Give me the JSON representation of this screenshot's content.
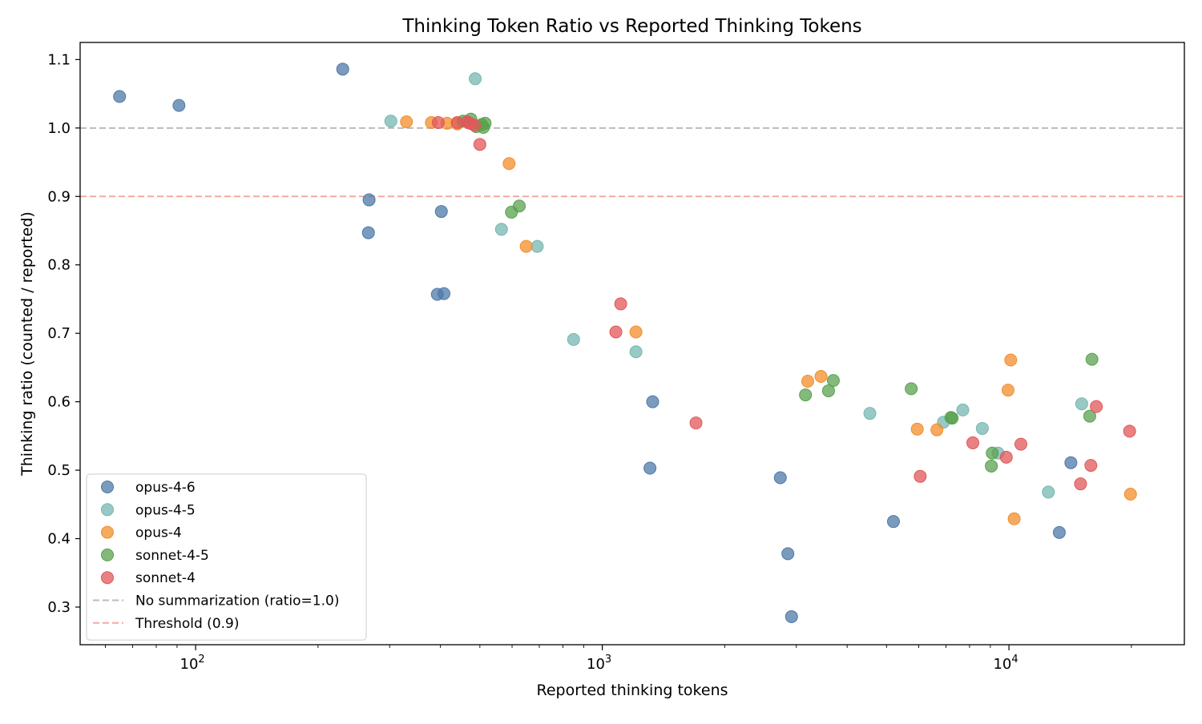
{
  "chart_data": {
    "type": "scatter",
    "title": "Thinking Token Ratio vs Reported Thinking Tokens",
    "xlabel": "Reported thinking tokens",
    "ylabel": "Thinking ratio (counted / reported)",
    "xscale": "log",
    "xlim": [
      52,
      27000
    ],
    "ylim": [
      0.245,
      1.125
    ],
    "x_tick_labels": [
      {
        "value": 100,
        "base": "10",
        "exp": "2"
      },
      {
        "value": 1000,
        "base": "10",
        "exp": "3"
      },
      {
        "value": 10000,
        "base": "10",
        "exp": "4"
      }
    ],
    "y_ticks": [
      0.3,
      0.4,
      0.5,
      0.6,
      0.7,
      0.8,
      0.9,
      1.0,
      1.1
    ],
    "y_tick_labels": [
      "0.3",
      "0.4",
      "0.5",
      "0.6",
      "0.7",
      "0.8",
      "0.9",
      "1.0",
      "1.1"
    ],
    "legend_position": "lower-left",
    "reference_lines": [
      {
        "name": "No summarization (ratio=1.0)",
        "y": 1.0,
        "color": "#bbbbbb",
        "style": "dashed"
      },
      {
        "name": "Threshold (0.9)",
        "y": 0.9,
        "color": "#f4a9a0",
        "style": "dashed"
      }
    ],
    "series": [
      {
        "name": "opus-4-6",
        "color": "#4e79a7",
        "points": [
          [
            65,
            1.046
          ],
          [
            91,
            1.033
          ],
          [
            230,
            1.086
          ],
          [
            267,
            0.895
          ],
          [
            266,
            0.847
          ],
          [
            402,
            0.878
          ],
          [
            393,
            0.757
          ],
          [
            408,
            0.758
          ],
          [
            1330,
            0.6
          ],
          [
            1310,
            0.503
          ],
          [
            2740,
            0.489
          ],
          [
            2860,
            0.378
          ],
          [
            2920,
            0.286
          ],
          [
            5200,
            0.425
          ],
          [
            14200,
            0.511
          ],
          [
            13300,
            0.409
          ]
        ]
      },
      {
        "name": "opus-4-5",
        "color": "#76b7b2",
        "points": [
          [
            302,
            1.01
          ],
          [
            487,
            1.072
          ],
          [
            565,
            0.852
          ],
          [
            692,
            0.827
          ],
          [
            850,
            0.691
          ],
          [
            1210,
            0.673
          ],
          [
            4550,
            0.583
          ],
          [
            6900,
            0.57
          ],
          [
            7700,
            0.588
          ],
          [
            8600,
            0.561
          ],
          [
            9400,
            0.525
          ],
          [
            12500,
            0.468
          ],
          [
            15100,
            0.597
          ]
        ]
      },
      {
        "name": "opus-4",
        "color": "#f28e2b",
        "points": [
          [
            330,
            1.009
          ],
          [
            380,
            1.008
          ],
          [
            415,
            1.007
          ],
          [
            440,
            1.006
          ],
          [
            590,
            0.948
          ],
          [
            650,
            0.827
          ],
          [
            1210,
            0.702
          ],
          [
            3200,
            0.63
          ],
          [
            3450,
            0.637
          ],
          [
            5950,
            0.56
          ],
          [
            6650,
            0.559
          ],
          [
            10100,
            0.661
          ],
          [
            9950,
            0.617
          ],
          [
            10300,
            0.429
          ],
          [
            19900,
            0.465
          ]
        ]
      },
      {
        "name": "sonnet-4-5",
        "color": "#59a14f",
        "points": [
          [
            455,
            1.01
          ],
          [
            475,
            1.013
          ],
          [
            490,
            1.002
          ],
          [
            505,
            1.005
          ],
          [
            515,
            1.007
          ],
          [
            510,
            1.001
          ],
          [
            598,
            0.877
          ],
          [
            625,
            0.886
          ],
          [
            3160,
            0.61
          ],
          [
            3600,
            0.616
          ],
          [
            3700,
            0.631
          ],
          [
            5750,
            0.619
          ],
          [
            7200,
            0.577
          ],
          [
            7250,
            0.576
          ],
          [
            9100,
            0.525
          ],
          [
            9050,
            0.506
          ],
          [
            16000,
            0.662
          ],
          [
            15800,
            0.579
          ]
        ]
      },
      {
        "name": "sonnet-4",
        "color": "#e15759",
        "points": [
          [
            395,
            1.008
          ],
          [
            440,
            1.008
          ],
          [
            465,
            1.009
          ],
          [
            472,
            1.007
          ],
          [
            485,
            1.004
          ],
          [
            500,
            0.976
          ],
          [
            1080,
            0.702
          ],
          [
            1110,
            0.743
          ],
          [
            1700,
            0.569
          ],
          [
            6050,
            0.491
          ],
          [
            8150,
            0.54
          ],
          [
            9850,
            0.519
          ],
          [
            10700,
            0.538
          ],
          [
            15000,
            0.48
          ],
          [
            15900,
            0.507
          ],
          [
            16400,
            0.593
          ],
          [
            19800,
            0.557
          ]
        ]
      }
    ]
  }
}
